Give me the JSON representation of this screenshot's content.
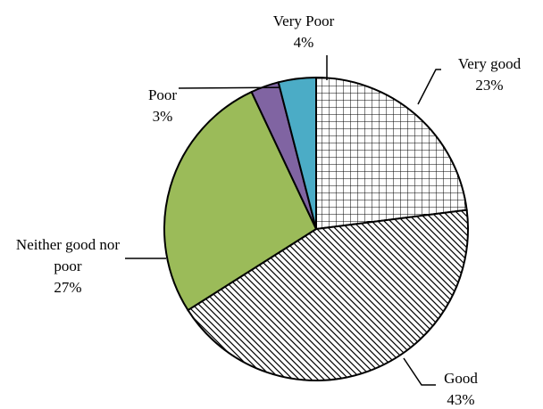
{
  "chart_data": {
    "type": "pie",
    "categories": [
      "Very good",
      "Good",
      "Neither good nor poor",
      "Poor",
      "Very Poor"
    ],
    "values": [
      23,
      43,
      27,
      3,
      4
    ],
    "value_labels": [
      "23%",
      "43%",
      "27%",
      "3%",
      "4%"
    ],
    "colors": [
      "#ffffff",
      "#ffffff",
      "#9bbb59",
      "#8064a2",
      "#4bacc6"
    ],
    "patterns": [
      "grid",
      "diagonal",
      null,
      null,
      null
    ],
    "start_angle": 0,
    "direction": "clockwise"
  }
}
